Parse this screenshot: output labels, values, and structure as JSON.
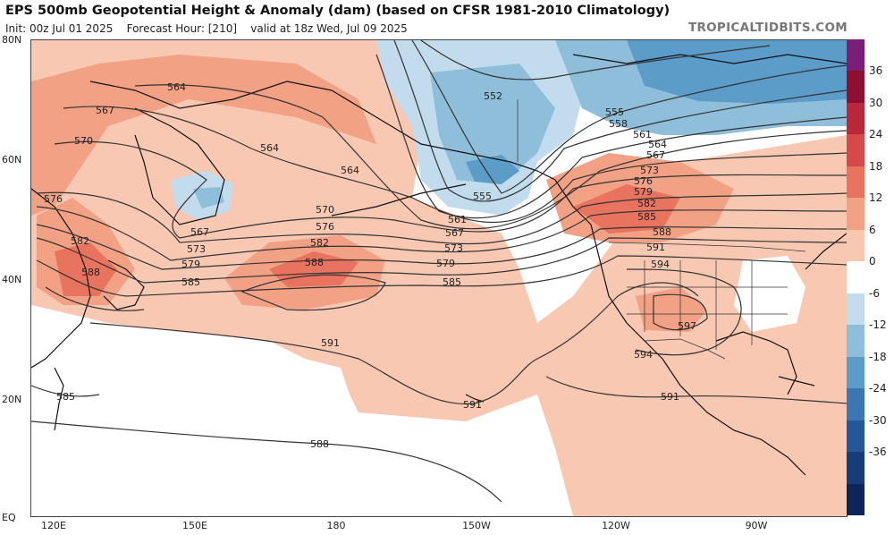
{
  "header": {
    "title": "EPS 500mb Geopotential Height & Anomaly (dam) (based on CFSR 1981-2010 Climatology)",
    "init": "Init: 00z Jul 01 2025",
    "forecast_hour": "Forecast Hour: [210]",
    "valid": "valid at 18z Wed, Jul 09 2025",
    "brand": "TROPICALTIDBITS.COM"
  },
  "axes": {
    "latitudes": [
      "80N",
      "60N",
      "40N",
      "20N",
      "EQ"
    ],
    "longitudes": [
      "120E",
      "150E",
      "180",
      "150W",
      "120W",
      "90W"
    ]
  },
  "colorbar": {
    "labels": [
      "36",
      "30",
      "24",
      "18",
      "12",
      "6",
      "0",
      "-6",
      "-12",
      "-18",
      "-24",
      "-30",
      "-36"
    ],
    "colors": [
      "#7a1e7a",
      "#8e1030",
      "#b8283a",
      "#d5494a",
      "#e8735f",
      "#f2a184",
      "#f8c8b2",
      "#ffffff",
      "#c2dced",
      "#8fbedb",
      "#5b9cc8",
      "#3a77b3",
      "#245797",
      "#173c7a",
      "#0d2657"
    ]
  },
  "contours": [
    {
      "label": "552"
    },
    {
      "label": "555"
    },
    {
      "label": "558"
    },
    {
      "label": "561"
    },
    {
      "label": "564"
    },
    {
      "label": "567"
    },
    {
      "label": "570"
    },
    {
      "label": "573"
    },
    {
      "label": "576"
    },
    {
      "label": "579"
    },
    {
      "label": "582"
    },
    {
      "label": "585"
    },
    {
      "label": "588"
    },
    {
      "label": "591"
    },
    {
      "label": "594"
    },
    {
      "label": "597"
    }
  ],
  "colors": {
    "positive_light": "#f8c8b2",
    "positive_mid": "#f2a184",
    "positive_strong": "#e8735f",
    "negative_light": "#c2dced",
    "negative_mid": "#8fbedb",
    "negative_strong": "#5b9cc8",
    "contour": "#333333",
    "coast": "#111111"
  }
}
